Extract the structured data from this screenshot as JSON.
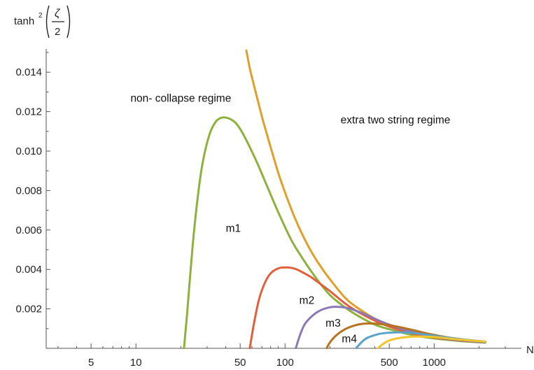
{
  "chart_data": {
    "type": "line",
    "xscale": "log",
    "xlim": [
      2.5,
      3000
    ],
    "ylim": [
      0,
      0.015
    ],
    "grid": false,
    "ylabel": {
      "base": "tanh",
      "sup": "2",
      "num": "ζ",
      "den": "2"
    },
    "xlabel": "N",
    "yticks": [
      {
        "v": 0.002,
        "label": "0.002"
      },
      {
        "v": 0.004,
        "label": "0.004"
      },
      {
        "v": 0.006,
        "label": "0.006"
      },
      {
        "v": 0.008,
        "label": "0.008"
      },
      {
        "v": 0.01,
        "label": "0.010"
      },
      {
        "v": 0.012,
        "label": "0.012"
      },
      {
        "v": 0.014,
        "label": "0.014"
      }
    ],
    "xticks_labeled": [
      {
        "v": 5,
        "label": "5"
      },
      {
        "v": 10,
        "label": "10"
      },
      {
        "v": 50,
        "label": "50"
      },
      {
        "v": 100,
        "label": "100"
      },
      {
        "v": 500,
        "label": "500"
      },
      {
        "v": 1000,
        "label": "1000"
      }
    ],
    "annotations": [
      {
        "text": "non- collapse regime",
        "x": 20,
        "y": 0.0125
      },
      {
        "text": "extra two string regime",
        "x": 550,
        "y": 0.0114
      },
      {
        "text": "m1",
        "x": 45,
        "y": 0.0059
      },
      {
        "text": "m2",
        "x": 140,
        "y": 0.00225
      },
      {
        "text": "m3",
        "x": 210,
        "y": 0.0011
      },
      {
        "text": "m4",
        "x": 270,
        "y": 0.0003
      }
    ],
    "series": [
      {
        "color": "#E09F2A",
        "x": [
          55,
          58,
          62,
          67,
          72,
          80,
          90,
          100,
          115,
          130,
          150,
          175,
          200,
          250,
          300,
          400,
          500,
          700,
          1000,
          1500,
          2200
        ],
        "y": [
          0.0151,
          0.0142,
          0.0133,
          0.0123,
          0.0114,
          0.0102,
          0.0089,
          0.0079,
          0.0067,
          0.0058,
          0.0049,
          0.0041,
          0.0035,
          0.0026,
          0.0021,
          0.0015,
          0.0012,
          0.00083,
          0.00059,
          0.00042,
          0.00032
        ]
      },
      {
        "color": "#8DB13D",
        "x": [
          21,
          22,
          24,
          26,
          28,
          31,
          34,
          37,
          40,
          43,
          47,
          52,
          58,
          65,
          75,
          90,
          110,
          130,
          160,
          200,
          250,
          300,
          400,
          500,
          700,
          1000,
          1500,
          2200
        ],
        "y": [
          0,
          0.0017,
          0.0052,
          0.0077,
          0.0094,
          0.0108,
          0.01145,
          0.01168,
          0.0117,
          0.01162,
          0.0114,
          0.0109,
          0.0102,
          0.0094,
          0.0083,
          0.0069,
          0.0055,
          0.0046,
          0.0036,
          0.0027,
          0.0021,
          0.0017,
          0.0012,
          0.00097,
          0.00069,
          0.0005,
          0.00037,
          0.00029
        ]
      },
      {
        "color": "#E35E3A",
        "x": [
          58,
          62,
          67,
          73,
          80,
          90,
          100,
          110,
          120,
          135,
          150,
          170,
          200,
          250,
          300,
          400,
          500,
          700,
          1000,
          1500,
          2200
        ],
        "y": [
          0,
          0.0013,
          0.0025,
          0.0033,
          0.0038,
          0.00405,
          0.0041,
          0.00408,
          0.004,
          0.0038,
          0.0036,
          0.0033,
          0.0029,
          0.0023,
          0.0019,
          0.0014,
          0.0011,
          0.00077,
          0.00055,
          0.0004,
          0.00031
        ]
      },
      {
        "color": "#8C78B4",
        "x": [
          118,
          125,
          135,
          150,
          170,
          200,
          230,
          260,
          300,
          350,
          400,
          500,
          700,
          1000,
          1500,
          2200
        ],
        "y": [
          0,
          0.0006,
          0.0012,
          0.0016,
          0.0019,
          0.00208,
          0.0021,
          0.00205,
          0.0019,
          0.0017,
          0.0015,
          0.0012,
          0.00085,
          0.00058,
          0.00041,
          0.00031
        ]
      },
      {
        "color": "#B8731E",
        "x": [
          190,
          200,
          220,
          250,
          290,
          330,
          380,
          450,
          550,
          700,
          900,
          1200,
          1600,
          2200
        ],
        "y": [
          0,
          0.0003,
          0.00065,
          0.00095,
          0.00115,
          0.00124,
          0.00126,
          0.00122,
          0.00112,
          0.00095,
          0.00075,
          0.00057,
          0.00044,
          0.00034
        ]
      },
      {
        "color": "#5AA3C8",
        "x": [
          300,
          320,
          350,
          400,
          450,
          520,
          600,
          700,
          850,
          1000,
          1300,
          1700,
          2200
        ],
        "y": [
          0,
          0.00025,
          0.0005,
          0.00067,
          0.00076,
          0.0008,
          0.00081,
          0.00079,
          0.00071,
          0.00064,
          0.00052,
          0.00042,
          0.00034
        ]
      },
      {
        "color": "#F2C52A",
        "x": [
          420,
          450,
          500,
          580,
          680,
          800,
          950,
          1150,
          1400,
          1800,
          2200
        ],
        "y": [
          0,
          0.0002,
          0.0004,
          0.00052,
          0.00058,
          0.0006,
          0.00058,
          0.00053,
          0.00046,
          0.00039,
          0.00034
        ]
      }
    ]
  }
}
